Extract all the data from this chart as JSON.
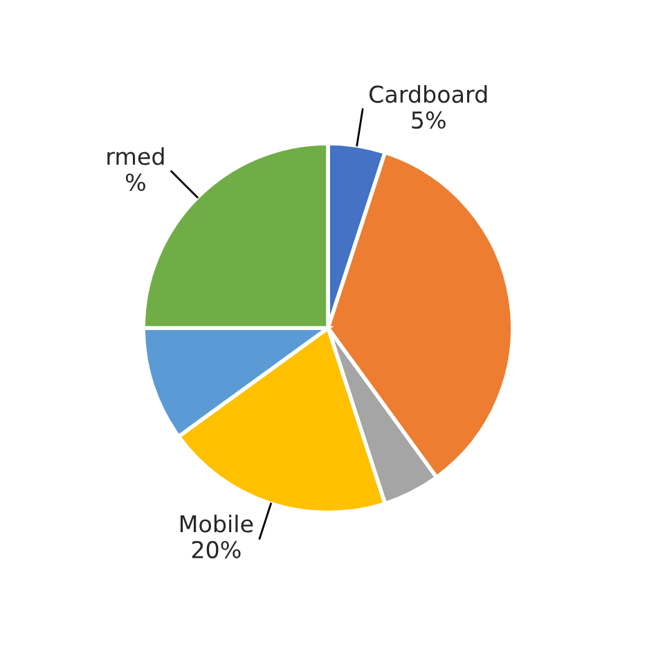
{
  "chart_data": {
    "type": "pie",
    "categories": [
      "Cardboard",
      null,
      null,
      "Mobile",
      null,
      "rmed"
    ],
    "values": [
      5,
      35,
      5,
      20,
      10,
      25
    ],
    "colors": [
      "#4472c4",
      "#ed7d31",
      "#a5a5a5",
      "#ffc000",
      "#5b9bd5",
      "#70ad47"
    ],
    "value_labels": [
      "5%",
      null,
      null,
      "20%",
      null,
      "%"
    ]
  }
}
